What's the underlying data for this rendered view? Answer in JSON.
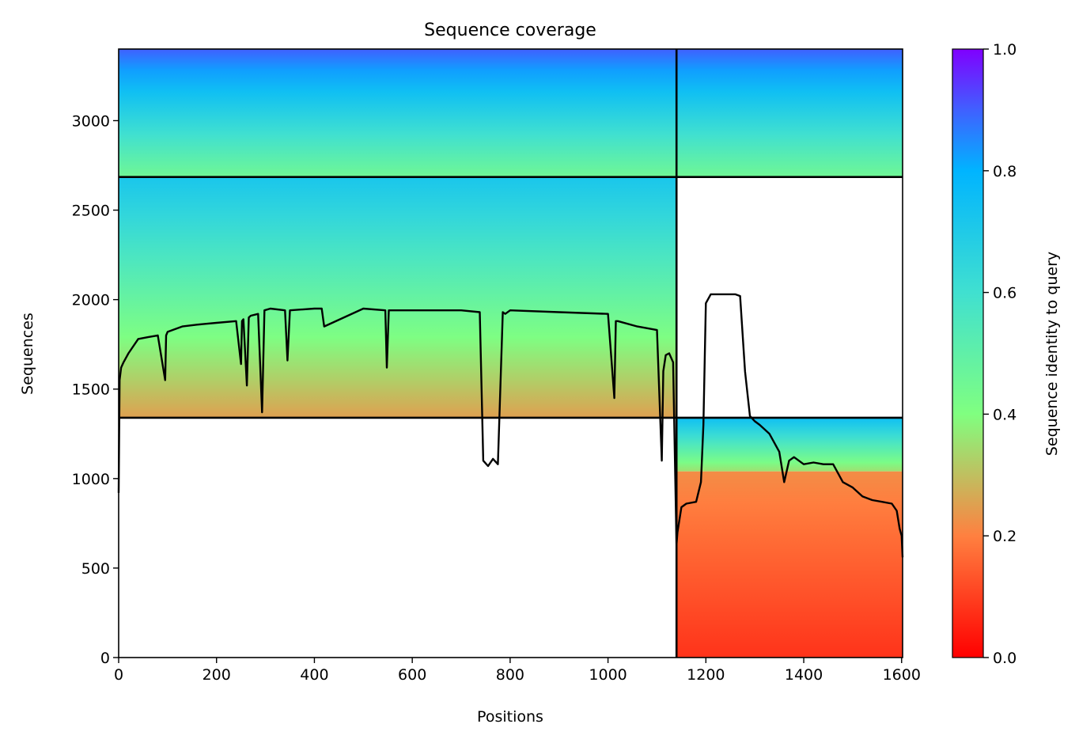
{
  "chart_data": {
    "type": "heatmap",
    "title": "Sequence coverage",
    "xlabel": "Positions",
    "ylabel": "Sequences",
    "xlim": [
      0,
      1602
    ],
    "ylim": [
      0,
      3400
    ],
    "x_ticks": [
      0,
      200,
      400,
      600,
      800,
      1000,
      1200,
      1400,
      1600
    ],
    "y_ticks": [
      0,
      500,
      1000,
      1500,
      2000,
      2500,
      3000
    ],
    "chain_boundaries_x": [
      1140
    ],
    "chain_boundaries_y": [
      1340,
      2685
    ],
    "blocks": [
      {
        "x": [
          0,
          1140
        ],
        "y": [
          2685,
          3400
        ],
        "identity_top": 0.9,
        "identity_bottom": 0.45
      },
      {
        "x": [
          1140,
          1602
        ],
        "y": [
          2685,
          3400
        ],
        "identity_top": 0.9,
        "identity_bottom": 0.45
      },
      {
        "x": [
          0,
          1140
        ],
        "y": [
          1340,
          2685
        ],
        "identity_top": 0.72,
        "identity_bottom": 0.25
      },
      {
        "x": [
          1140,
          1602
        ],
        "y": [
          1040,
          1340
        ],
        "identity_top": 0.75,
        "identity_bottom": 0.35
      },
      {
        "x": [
          1140,
          1602
        ],
        "y": [
          0,
          1040
        ],
        "identity_top": 0.22,
        "identity_bottom": 0.08
      }
    ],
    "coverage_line": {
      "x": [
        0,
        2,
        5,
        10,
        20,
        40,
        60,
        80,
        95,
        97,
        100,
        130,
        160,
        200,
        240,
        250,
        252,
        255,
        262,
        266,
        270,
        285,
        293,
        298,
        310,
        340,
        345,
        350,
        400,
        415,
        420,
        500,
        545,
        548,
        552,
        600,
        700,
        738,
        745,
        755,
        765,
        775,
        785,
        790,
        800,
        900,
        1000,
        1013,
        1016,
        1020,
        1060,
        1100,
        1110,
        1113,
        1118,
        1125,
        1133,
        1140,
        1142,
        1150,
        1160,
        1180,
        1190,
        1195,
        1200,
        1210,
        1230,
        1260,
        1270,
        1280,
        1290,
        1300,
        1310,
        1330,
        1350,
        1360,
        1370,
        1380,
        1400,
        1420,
        1440,
        1460,
        1480,
        1500,
        1520,
        1540,
        1560,
        1580,
        1590,
        1596,
        1600,
        1602
      ],
      "y": [
        920,
        1550,
        1620,
        1650,
        1700,
        1780,
        1790,
        1800,
        1550,
        1800,
        1820,
        1850,
        1860,
        1870,
        1880,
        1640,
        1880,
        1890,
        1520,
        1900,
        1910,
        1920,
        1370,
        1940,
        1950,
        1940,
        1660,
        1940,
        1950,
        1950,
        1850,
        1950,
        1940,
        1620,
        1940,
        1940,
        1940,
        1930,
        1100,
        1070,
        1110,
        1080,
        1930,
        1920,
        1940,
        1930,
        1920,
        1450,
        1880,
        1880,
        1850,
        1830,
        1100,
        1600,
        1690,
        1700,
        1650,
        630,
        700,
        840,
        860,
        870,
        980,
        1300,
        1980,
        2030,
        2030,
        2030,
        2020,
        1600,
        1350,
        1320,
        1300,
        1250,
        1150,
        980,
        1100,
        1120,
        1080,
        1090,
        1080,
        1080,
        980,
        950,
        900,
        880,
        870,
        860,
        820,
        720,
        680,
        560
      ]
    },
    "colorbar": {
      "label": "Sequence identity to query",
      "min": 0,
      "max": 1,
      "ticks": [
        0.0,
        0.2,
        0.4,
        0.6,
        0.8,
        1.0
      ],
      "tick_labels": [
        "0.0",
        "0.2",
        "0.4",
        "0.6",
        "0.8",
        "1.0"
      ],
      "colormap": "rainbow_r"
    }
  }
}
